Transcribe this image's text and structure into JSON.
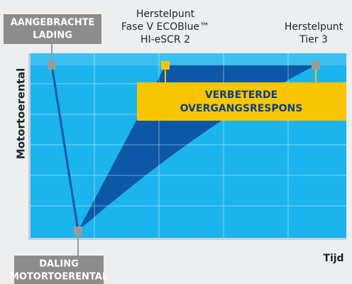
{
  "applied_load": {
    "lines": [
      "AANGEBRACHTE",
      "LADING"
    ]
  },
  "recovery_stage5": {
    "lines": [
      "Herstelpunt",
      "Fase V ECOBlue™",
      "HI-eSCR 2"
    ]
  },
  "recovery_tier3": {
    "lines": [
      "Herstelpunt",
      "Tier 3"
    ]
  },
  "callout": {
    "lines": [
      "VERBETERDE",
      "OVERGANGSRESPONS"
    ]
  },
  "y_axis_label": "Motortoerental",
  "x_axis_label": "Tijd",
  "speed_drop": {
    "lines": [
      "DALING",
      "MOTORTOERENTAL"
    ]
  }
}
